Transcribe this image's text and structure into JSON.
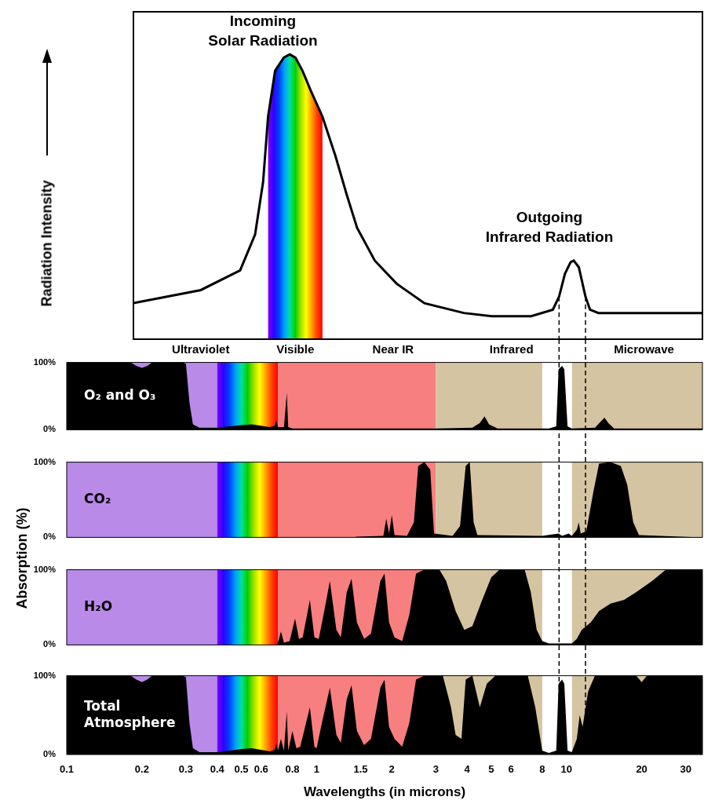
{
  "chart_data": [
    {
      "type": "line",
      "ylabel": "Radiation Intensity",
      "annotations": [
        {
          "lines": [
            "Incoming",
            "Solar Radiation"
          ]
        },
        {
          "lines": [
            "Outgoing",
            "Infrared Radiation"
          ]
        }
      ],
      "color": "#000000",
      "log": "x",
      "grid": false,
      "tick_labels": false,
      "xlim": [
        0.1,
        35
      ],
      "ylim": [
        0,
        100
      ],
      "x": [
        0.1,
        0.2,
        0.3,
        0.35,
        0.38,
        0.4,
        0.43,
        0.47,
        0.5,
        0.53,
        0.57,
        0.62,
        0.7,
        0.8,
        0.9,
        1,
        1.2,
        1.5,
        2,
        3,
        4,
        6,
        7.5,
        8,
        8.5,
        9,
        9.3,
        9.8,
        10.5,
        11,
        12,
        13,
        20,
        35
      ],
      "values": [
        11,
        15,
        21,
        32,
        48,
        68,
        82,
        86,
        87,
        86,
        82,
        76,
        68,
        56,
        44,
        34,
        24,
        17,
        11,
        8,
        7,
        7,
        9,
        13,
        20,
        23.5,
        24,
        22,
        13,
        9,
        8,
        8,
        8,
        8
      ]
    },
    {
      "type": "area",
      "label": [
        "O₂ and O₃"
      ],
      "color": "#000000",
      "log": "x",
      "grid": false,
      "tick_labels": "y",
      "xlim": [
        0.1,
        35
      ],
      "ylim": [
        0,
        100
      ],
      "yticks": [
        {
          "value": 0,
          "label": "0%"
        },
        {
          "value": 100,
          "label": "100%"
        }
      ],
      "x": [
        0.1,
        0.18,
        0.19,
        0.2,
        0.21,
        0.22,
        0.29,
        0.3,
        0.31,
        0.32,
        0.34,
        0.4,
        0.45,
        0.5,
        0.55,
        0.6,
        0.65,
        0.68,
        0.69,
        0.7,
        0.74,
        0.76,
        0.77,
        0.8,
        1,
        3,
        4.2,
        4.5,
        4.7,
        4.9,
        5.3,
        8.5,
        9.1,
        9.3,
        9.6,
        9.8,
        10.1,
        10.5,
        13,
        13.7,
        14.2,
        14.7,
        15.5,
        35
      ],
      "values": [
        100,
        100,
        95,
        92,
        95,
        100,
        100,
        98,
        40,
        8,
        3,
        3,
        5,
        7,
        8,
        6,
        4,
        6,
        14,
        4,
        4,
        55,
        4,
        2,
        2,
        2,
        3,
        10,
        20,
        8,
        2,
        2,
        5,
        90,
        95,
        90,
        5,
        2,
        3,
        12,
        18,
        10,
        2,
        2
      ]
    },
    {
      "type": "area",
      "label": [
        "CO₂"
      ],
      "color": "#000000",
      "log": "x",
      "grid": false,
      "tick_labels": "y",
      "xlim": [
        0.1,
        35
      ],
      "ylim": [
        0,
        100
      ],
      "yticks": [
        {
          "value": 0,
          "label": "0%"
        },
        {
          "value": 100,
          "label": "100%"
        }
      ],
      "x": [
        0.1,
        1.4,
        1.45,
        1.85,
        1.9,
        1.95,
        2.0,
        2.05,
        2.3,
        2.45,
        2.55,
        2.7,
        2.85,
        2.95,
        3.5,
        3.75,
        3.95,
        4.1,
        4.25,
        4.4,
        8,
        9.3,
        9.6,
        10.2,
        10.5,
        11.0,
        11.2,
        11.4,
        12,
        12.8,
        13.5,
        15,
        16.5,
        17.5,
        18.5,
        19.5,
        35
      ],
      "values": [
        0,
        0,
        1,
        2,
        25,
        5,
        30,
        3,
        2,
        20,
        95,
        100,
        90,
        5,
        2,
        15,
        95,
        100,
        20,
        3,
        2,
        5,
        2,
        5,
        2,
        10,
        20,
        5,
        8,
        60,
        98,
        100,
        95,
        70,
        20,
        3,
        0
      ]
    },
    {
      "type": "area",
      "label": [
        "H₂O"
      ],
      "color": "#000000",
      "log": "x",
      "grid": false,
      "tick_labels": "y",
      "xlim": [
        0.1,
        35
      ],
      "ylim": [
        0,
        100
      ],
      "yticks": [
        {
          "value": 0,
          "label": "0%"
        },
        {
          "value": 100,
          "label": "100%"
        }
      ],
      "x": [
        0.1,
        0.69,
        0.7,
        0.72,
        0.74,
        0.78,
        0.82,
        0.85,
        0.88,
        0.94,
        0.98,
        1.02,
        1.08,
        1.13,
        1.2,
        1.25,
        1.32,
        1.38,
        1.45,
        1.55,
        1.65,
        1.8,
        1.87,
        1.95,
        2.05,
        2.2,
        2.35,
        2.5,
        2.7,
        3.1,
        3.3,
        3.6,
        3.9,
        4.2,
        4.6,
        5.0,
        5.4,
        6.8,
        7.2,
        7.6,
        8.0,
        8.5,
        10.5,
        11,
        11.5,
        12.5,
        13.5,
        15,
        17,
        19,
        22,
        25,
        35
      ],
      "values": [
        0,
        0,
        3,
        18,
        3,
        5,
        35,
        8,
        10,
        60,
        10,
        8,
        50,
        85,
        20,
        10,
        70,
        88,
        30,
        8,
        15,
        85,
        95,
        30,
        10,
        5,
        40,
        95,
        100,
        100,
        85,
        45,
        20,
        25,
        60,
        90,
        100,
        100,
        70,
        20,
        5,
        2,
        2,
        8,
        20,
        30,
        45,
        55,
        60,
        70,
        85,
        100,
        100
      ]
    },
    {
      "type": "area",
      "label": [
        "Total",
        "Atmosphere"
      ],
      "xlabel": "Wavelengths (in microns)",
      "color": "#000000",
      "log": "x",
      "grid": false,
      "xlim": [
        0.1,
        35
      ],
      "ylim": [
        0,
        100
      ],
      "xticks": [
        0.1,
        0.2,
        0.3,
        0.4,
        0.5,
        0.6,
        0.8,
        1,
        1.5,
        2,
        3,
        4,
        5,
        6,
        8,
        10,
        20,
        30
      ],
      "yticks": [
        {
          "value": 0,
          "label": "0%"
        },
        {
          "value": 100,
          "label": "100%"
        }
      ],
      "x": [
        0.1,
        0.18,
        0.19,
        0.2,
        0.21,
        0.22,
        0.29,
        0.3,
        0.31,
        0.32,
        0.34,
        0.4,
        0.45,
        0.5,
        0.55,
        0.6,
        0.65,
        0.68,
        0.69,
        0.7,
        0.72,
        0.74,
        0.76,
        0.77,
        0.8,
        0.83,
        0.86,
        0.94,
        0.98,
        1.0,
        1.05,
        1.13,
        1.2,
        1.25,
        1.32,
        1.38,
        1.45,
        1.55,
        1.65,
        1.8,
        1.87,
        1.95,
        2.05,
        2.2,
        2.35,
        2.5,
        2.7,
        3.2,
        3.45,
        3.6,
        3.8,
        3.95,
        4.2,
        4.5,
        4.8,
        5.2,
        7.0,
        7.5,
        8.0,
        8.5,
        9.1,
        9.3,
        9.6,
        9.8,
        10.1,
        10.5,
        11,
        11.3,
        11.6,
        12.2,
        13,
        19,
        20,
        21,
        35
      ],
      "values": [
        100,
        100,
        95,
        92,
        95,
        100,
        100,
        98,
        40,
        8,
        3,
        3,
        5,
        7,
        8,
        6,
        4,
        6,
        14,
        5,
        20,
        5,
        55,
        5,
        30,
        8,
        10,
        60,
        10,
        8,
        40,
        85,
        25,
        15,
        70,
        88,
        30,
        12,
        20,
        85,
        95,
        35,
        20,
        10,
        40,
        95,
        100,
        100,
        60,
        25,
        20,
        95,
        100,
        60,
        90,
        100,
        100,
        60,
        5,
        2,
        5,
        90,
        95,
        90,
        5,
        3,
        20,
        50,
        35,
        80,
        100,
        100,
        92,
        100,
        100
      ]
    }
  ],
  "ylabel": "Absorption (%)",
  "bands": [
    {
      "label": "Ultraviolet",
      "from": 0.1,
      "to": 0.4,
      "color": "#b98ae8"
    },
    {
      "label": "Visible",
      "from": 0.4,
      "to": 0.7,
      "colors": [
        "#7f00ff",
        "#3000ff",
        "#0040ff",
        "#00a0ff",
        "#00e0a0",
        "#00d000",
        "#a0e000",
        "#ffff00",
        "#ffa000",
        "#ff4000",
        "#ff0000"
      ]
    },
    {
      "label": "Near IR",
      "from": 0.7,
      "to": 3,
      "color": "#f87f7f"
    },
    {
      "label": "Infrared",
      "from": 3,
      "to": 8,
      "color": "#d5c4a1"
    },
    {
      "label": "Microwave",
      "from": 10.5,
      "to": 35,
      "color": "#d5c4a1"
    }
  ],
  "window": {
    "from": 8,
    "to": 10.5,
    "color": "#ffffff",
    "line_style": "dashed"
  }
}
